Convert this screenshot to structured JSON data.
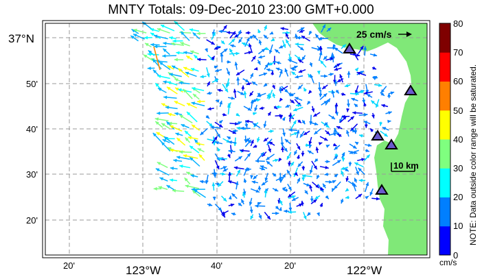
{
  "title": "MNTY Totals: 09-Dec-2010 23:00 GMT+0.000",
  "scale_label": "25 cm/s",
  "distance_label": "10 km",
  "axes": {
    "lat_labels": [
      "37°N",
      "50'",
      "40'",
      "30'",
      "20'"
    ],
    "lon_labels": [
      "20'",
      "123°W",
      "40'",
      "20'",
      "122°W"
    ]
  },
  "colorbar": {
    "ticks": [
      "80",
      "70",
      "60",
      "50",
      "40",
      "30",
      "20",
      "10",
      "0"
    ],
    "unit": "cm/s",
    "note": "NOTE: Data outside color range will be saturated.",
    "colors": [
      "#7f0000",
      "#ff0000",
      "#ff7f00",
      "#ffff00",
      "#7fff7f",
      "#00ffff",
      "#007fff",
      "#0000ff"
    ]
  },
  "land_color": "#80e878",
  "stations": [
    "station-1",
    "station-2",
    "station-3",
    "station-4",
    "station-5"
  ]
}
